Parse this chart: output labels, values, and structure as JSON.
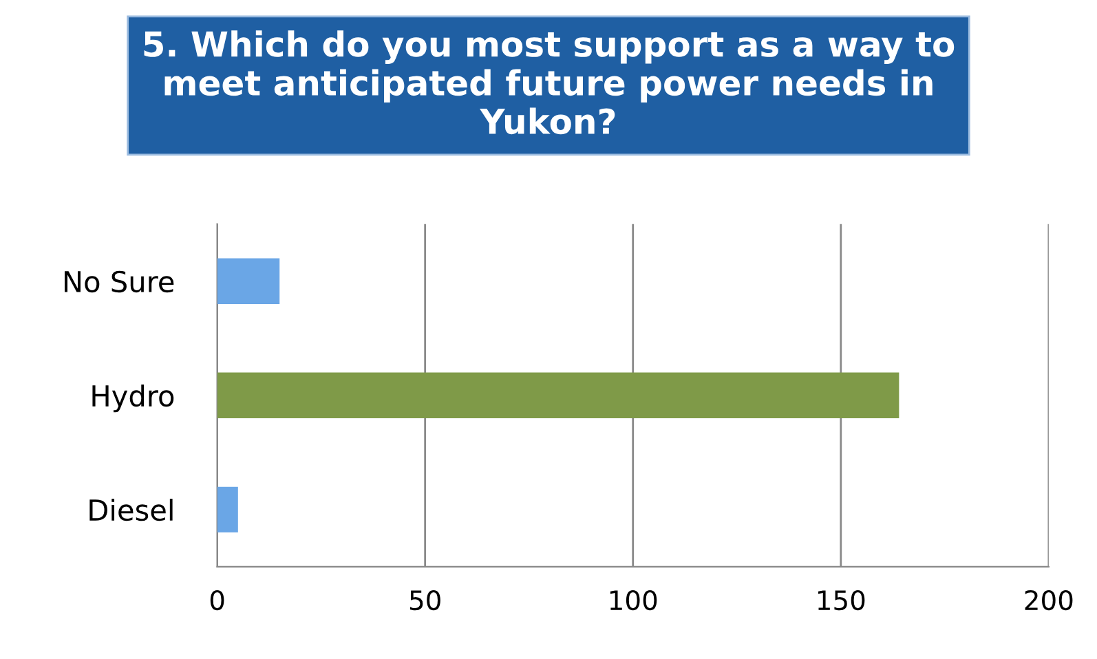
{
  "chart_data": {
    "type": "bar",
    "orientation": "horizontal",
    "title": "5. Which do you most support as a way to meet anticipated future power needs in Yukon?",
    "categories": [
      "No Sure",
      "Hydro",
      "Diesel"
    ],
    "values": [
      15,
      164,
      5
    ],
    "colors": [
      "#6aa6e6",
      "#7f9a48",
      "#6aa6e6"
    ],
    "xlim": [
      0,
      200
    ],
    "xticks": [
      0,
      50,
      100,
      150,
      200
    ],
    "grid": "x"
  }
}
